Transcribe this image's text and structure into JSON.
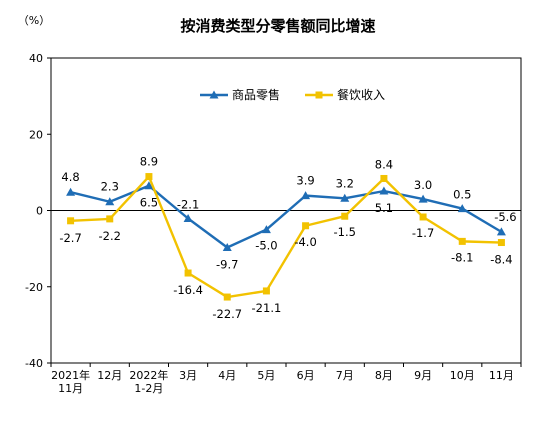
{
  "chart_data": {
    "type": "line",
    "title": "按消费类型分零售额同比增速",
    "unit_label": "（%）",
    "ylim": [
      -40,
      40
    ],
    "yticks": [
      "40",
      "20",
      "0",
      "-20",
      "-40"
    ],
    "categories": [
      [
        "2021年",
        "11月"
      ],
      [
        "12月"
      ],
      [
        "2022年",
        "1-2月"
      ],
      [
        "3月"
      ],
      [
        "4月"
      ],
      [
        "5月"
      ],
      [
        "6月"
      ],
      [
        "7月"
      ],
      [
        "8月"
      ],
      [
        "9月"
      ],
      [
        "10月"
      ],
      [
        "11月"
      ]
    ],
    "series": [
      {
        "name": "商品零售",
        "color": "#1F6DB5",
        "marker": "triangle",
        "values": [
          4.8,
          2.3,
          6.5,
          -2.1,
          -9.7,
          -5.0,
          3.9,
          3.2,
          5.1,
          3.0,
          0.5,
          -5.6
        ],
        "labels": [
          "4.8",
          "2.3",
          "6.5",
          "-2.1",
          "-9.7",
          "-5.0",
          "3.9",
          "3.2",
          "5.1",
          "3.0",
          "0.5",
          "-5.6"
        ]
      },
      {
        "name": "餐饮收入",
        "color": "#F2C200",
        "marker": "square",
        "values": [
          -2.7,
          -2.2,
          8.9,
          -16.4,
          -22.7,
          -21.1,
          -4.0,
          -1.5,
          8.4,
          -1.7,
          -8.1,
          -8.4
        ],
        "labels": [
          "-2.7",
          "-2.2",
          "8.9",
          "-16.4",
          "-22.7",
          "-21.1",
          "-4.0",
          "-1.5",
          "8.4",
          "-1.7",
          "-8.1",
          "-8.4"
        ]
      }
    ],
    "legend_position": "top-center",
    "grid": false
  }
}
